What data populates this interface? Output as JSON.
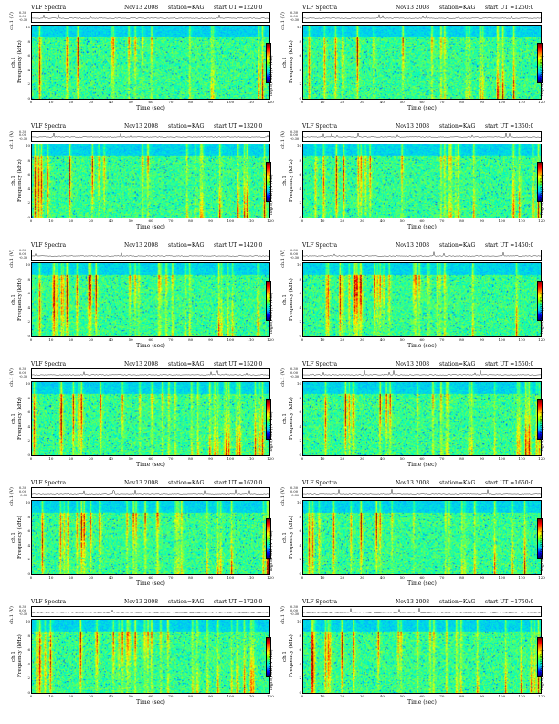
{
  "figure": {
    "title": "VLF Spectra",
    "date": "Nov13 2008",
    "station": "station=KAG",
    "start_prefix": "start  UT =",
    "ch_label": "ch.1 (V)",
    "ch_ticks": [
      "0.30",
      "0.00",
      "-0.30"
    ],
    "y_label": "ch.1\nFrequency (kHz)",
    "y_ticks": [
      "0",
      "2",
      "4",
      "6",
      "8",
      "10"
    ],
    "x_label": "Time  (sec)",
    "x_ticks": [
      "0",
      "10",
      "20",
      "30",
      "40",
      "50",
      "60",
      "70",
      "80",
      "90",
      "100",
      "110",
      "120"
    ],
    "colorbar_label": "log₁₀(PSD)(V²/Hz)"
  },
  "chart_data": [
    {
      "type": "heatmap",
      "start_ut": "1220:0",
      "xlim": [
        0,
        120
      ],
      "ylim": [
        0,
        10
      ],
      "xlabel": "Time  (sec)",
      "ylabel": "Frequency (kHz)",
      "intensity": 0.9
    },
    {
      "type": "heatmap",
      "start_ut": "1250:0",
      "xlim": [
        0,
        120
      ],
      "ylim": [
        0,
        10
      ],
      "xlabel": "Time  (sec)",
      "ylabel": "Frequency (kHz)",
      "intensity": 0.85
    },
    {
      "type": "heatmap",
      "start_ut": "1320:0",
      "xlim": [
        0,
        120
      ],
      "ylim": [
        0,
        10
      ],
      "xlabel": "Time  (sec)",
      "ylabel": "Frequency (kHz)",
      "intensity": 1.0
    },
    {
      "type": "heatmap",
      "start_ut": "1350:0",
      "xlim": [
        0,
        120
      ],
      "ylim": [
        0,
        10
      ],
      "xlabel": "Time  (sec)",
      "ylabel": "Frequency (kHz)",
      "intensity": 1.05
    },
    {
      "type": "heatmap",
      "start_ut": "1420:0",
      "xlim": [
        0,
        120
      ],
      "ylim": [
        0,
        10
      ],
      "xlabel": "Time  (sec)",
      "ylabel": "Frequency (kHz)",
      "intensity": 1.25
    },
    {
      "type": "heatmap",
      "start_ut": "1450:0",
      "xlim": [
        0,
        120
      ],
      "ylim": [
        0,
        10
      ],
      "xlabel": "Time  (sec)",
      "ylabel": "Frequency (kHz)",
      "intensity": 1.25
    },
    {
      "type": "heatmap",
      "start_ut": "1520:0",
      "xlim": [
        0,
        120
      ],
      "ylim": [
        0,
        10
      ],
      "xlabel": "Time  (sec)",
      "ylabel": "Frequency (kHz)",
      "intensity": 1.3
    },
    {
      "type": "heatmap",
      "start_ut": "1550:0",
      "xlim": [
        0,
        120
      ],
      "ylim": [
        0,
        10
      ],
      "xlabel": "Time  (sec)",
      "ylabel": "Frequency (kHz)",
      "intensity": 1.2
    },
    {
      "type": "heatmap",
      "start_ut": "1620:0",
      "xlim": [
        0,
        120
      ],
      "ylim": [
        0,
        10
      ],
      "xlabel": "Time  (sec)",
      "ylabel": "Frequency (kHz)",
      "intensity": 1.1
    },
    {
      "type": "heatmap",
      "start_ut": "1650:0",
      "xlim": [
        0,
        120
      ],
      "ylim": [
        0,
        10
      ],
      "xlabel": "Time  (sec)",
      "ylabel": "Frequency (kHz)",
      "intensity": 1.05
    },
    {
      "type": "heatmap",
      "start_ut": "1720:0",
      "xlim": [
        0,
        120
      ],
      "ylim": [
        0,
        10
      ],
      "xlabel": "Time  (sec)",
      "ylabel": "Frequency (kHz)",
      "intensity": 1.15
    },
    {
      "type": "heatmap",
      "start_ut": "1750:0",
      "xlim": [
        0,
        120
      ],
      "ylim": [
        0,
        10
      ],
      "xlabel": "Time  (sec)",
      "ylabel": "Frequency (kHz)",
      "intensity": 1.1
    }
  ]
}
